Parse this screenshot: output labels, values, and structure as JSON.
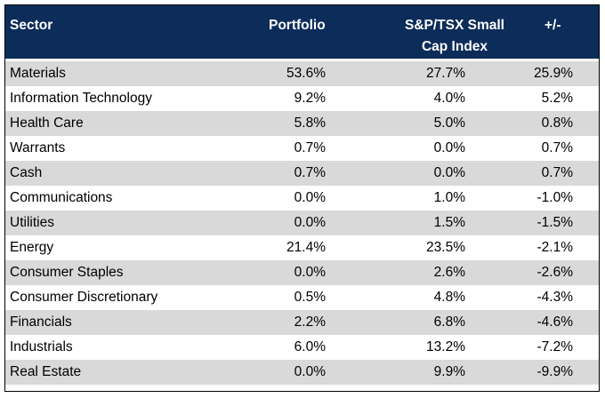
{
  "table": {
    "headers": {
      "sector": "Sector",
      "portfolio": "Portfolio",
      "index_line1": "S&P/TSX Small",
      "index_line2": "Cap Index",
      "diff": "+/-"
    },
    "rows": [
      {
        "sector": "Materials",
        "portfolio": "53.6%",
        "index": "27.7%",
        "diff": "25.9%"
      },
      {
        "sector": "Information Technology",
        "portfolio": "9.2%",
        "index": "4.0%",
        "diff": "5.2%"
      },
      {
        "sector": "Health Care",
        "portfolio": "5.8%",
        "index": "5.0%",
        "diff": "0.8%"
      },
      {
        "sector": "Warrants",
        "portfolio": "0.7%",
        "index": "0.0%",
        "diff": "0.7%"
      },
      {
        "sector": "Cash",
        "portfolio": "0.7%",
        "index": "0.0%",
        "diff": "0.7%"
      },
      {
        "sector": "Communications",
        "portfolio": "0.0%",
        "index": "1.0%",
        "diff": "-1.0%"
      },
      {
        "sector": "Utilities",
        "portfolio": "0.0%",
        "index": "1.5%",
        "diff": "-1.5%"
      },
      {
        "sector": "Energy",
        "portfolio": "21.4%",
        "index": "23.5%",
        "diff": "-2.1%"
      },
      {
        "sector": "Consumer Staples",
        "portfolio": "0.0%",
        "index": "2.6%",
        "diff": "-2.6%"
      },
      {
        "sector": "Consumer Discretionary",
        "portfolio": "0.5%",
        "index": "4.8%",
        "diff": "-4.3%"
      },
      {
        "sector": "Financials",
        "portfolio": "2.2%",
        "index": "6.8%",
        "diff": "-4.6%"
      },
      {
        "sector": "Industrials",
        "portfolio": "6.0%",
        "index": "13.2%",
        "diff": "-7.2%"
      },
      {
        "sector": "Real Estate",
        "portfolio": "0.0%",
        "index": "9.9%",
        "diff": "-9.9%"
      }
    ]
  },
  "colors": {
    "header_bg": "#0c2c5a",
    "header_text": "#ffffff",
    "row_shade": "#d9d9d9"
  }
}
